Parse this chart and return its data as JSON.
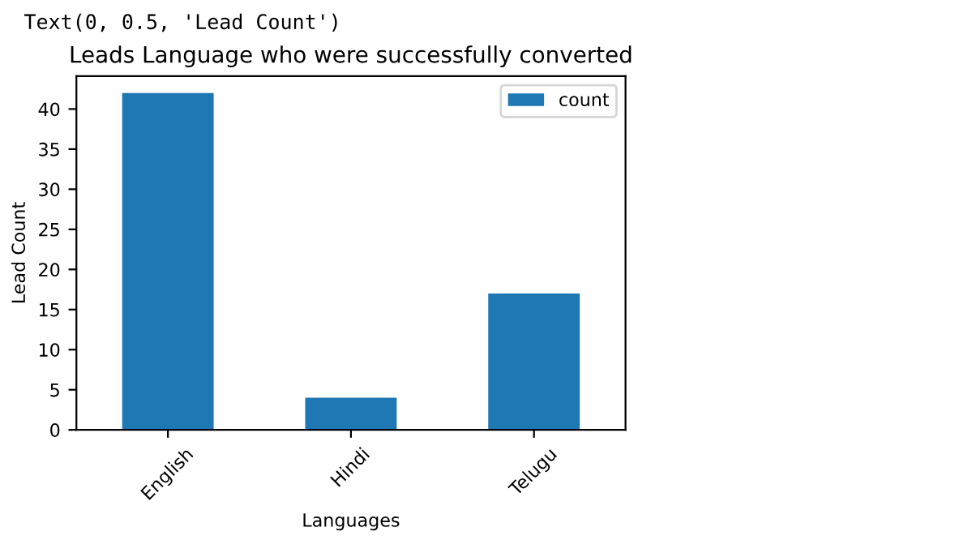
{
  "chart_data": {
    "type": "bar",
    "title": "Leads Language who were successfully converted",
    "xlabel": "Languages",
    "ylabel": "Lead Count",
    "categories": [
      "English",
      "Hindi",
      "Telugu"
    ],
    "series": [
      {
        "name": "count",
        "color": "#1f77b4",
        "values": [
          42,
          4,
          17
        ]
      }
    ],
    "ylim": [
      0,
      44.1
    ],
    "yticks": [
      0,
      5,
      10,
      15,
      20,
      25,
      30,
      35,
      40
    ],
    "grid": false,
    "legend": "top right",
    "annotations": [
      "Text(0, 0.5, 'Lead Count')"
    ]
  }
}
